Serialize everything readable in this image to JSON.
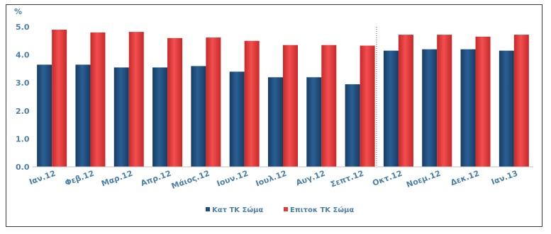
{
  "chart_data": {
    "type": "bar",
    "unit_label": "%",
    "categories": [
      "Ιαν.12",
      "Φεβ.12",
      "Μαρ.12",
      "Απρ.12",
      "Μάιος.12",
      "Ιουν.12",
      "Ιουλ.12",
      "Αυγ.12",
      "Σεπτ.12",
      "Οκτ.12",
      "Νοεμ.12",
      "Δεκ.12",
      "Ιαν.13"
    ],
    "series": [
      {
        "name": "Κατ ΤΚ Σώμα",
        "color": "#1f4e79",
        "values": [
          3.65,
          3.65,
          3.55,
          3.55,
          3.6,
          3.4,
          3.2,
          3.2,
          2.95,
          4.15,
          4.2,
          4.2,
          4.15
        ]
      },
      {
        "name": "Επιτοκ ΤΚ Σώμα",
        "color": "#e23a3a",
        "values": [
          4.9,
          4.8,
          4.82,
          4.6,
          4.62,
          4.5,
          4.35,
          4.35,
          4.33,
          4.72,
          4.72,
          4.65,
          4.72
        ]
      }
    ],
    "ylim": [
      0,
      5
    ],
    "yticks": [
      "0.0",
      "1.0",
      "2.0",
      "3.0",
      "4.0",
      "5.0"
    ],
    "grid": false,
    "legend_position": "bottom"
  }
}
